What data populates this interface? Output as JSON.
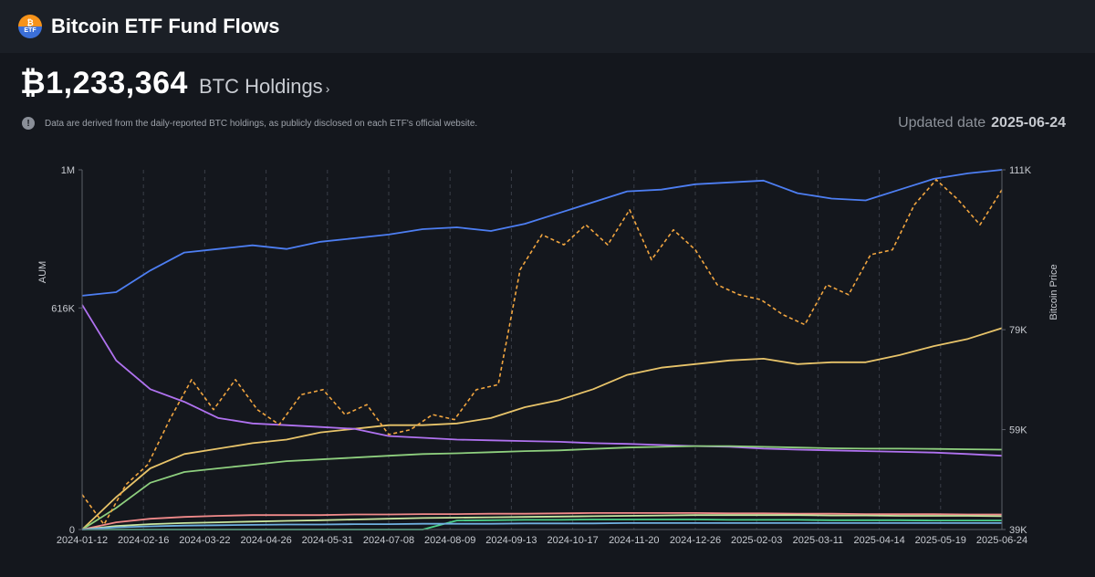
{
  "header": {
    "title": "Bitcoin ETF Fund Flows",
    "logo_top": "₿",
    "logo_bottom": "ETF"
  },
  "holdings": {
    "value": "₿1,233,364",
    "label": "BTC Holdings"
  },
  "note": "Data are derived from the daily-reported BTC holdings, as publicly disclosed on each ETF's official website.",
  "updated": {
    "label": "Updated date",
    "date": "2025-06-24"
  },
  "colors": {
    "background": "#14171d",
    "grid": "#3a3f48",
    "axis": "#5a5f68"
  },
  "chart_data": {
    "type": "line",
    "title": "",
    "ylabel": "AUM",
    "y2label": "Bitcoin Price",
    "ylim": [
      0,
      1000000
    ],
    "y2lim": [
      39000,
      111000
    ],
    "y_ticks": [
      "0",
      "616K",
      "1M"
    ],
    "y_tick_values": [
      0,
      616000,
      1000000
    ],
    "y2_ticks": [
      "39K",
      "59K",
      "79K",
      "111K"
    ],
    "y2_tick_values": [
      39000,
      59000,
      79000,
      111000
    ],
    "x_ticks": [
      "2024-01-12",
      "2024-02-16",
      "2024-03-22",
      "2024-04-26",
      "2024-05-31",
      "2024-07-08",
      "2024-08-09",
      "2024-09-13",
      "2024-10-17",
      "2024-11-20",
      "2024-12-26",
      "2025-02-03",
      "2025-03-11",
      "2025-04-14",
      "2025-05-19",
      "2025-06-24"
    ],
    "grid": true,
    "series": [
      {
        "color": "#4d7ef2",
        "axis": "y",
        "style": "solid",
        "values": [
          650000,
          660000,
          720000,
          770000,
          780000,
          790000,
          780000,
          800000,
          810000,
          820000,
          835000,
          840000,
          830000,
          850000,
          880000,
          910000,
          940000,
          945000,
          960000,
          965000,
          970000,
          935000,
          920000,
          915000,
          945000,
          975000,
          990000,
          1000000
        ]
      },
      {
        "color": "#e8c46a",
        "axis": "y",
        "style": "solid",
        "values": [
          0,
          90000,
          170000,
          210000,
          225000,
          240000,
          250000,
          270000,
          280000,
          290000,
          290000,
          295000,
          310000,
          340000,
          360000,
          390000,
          430000,
          450000,
          460000,
          470000,
          475000,
          460000,
          465000,
          465000,
          485000,
          510000,
          530000,
          560000
        ]
      },
      {
        "color": "#b072f0",
        "axis": "y",
        "style": "solid",
        "values": [
          625000,
          470000,
          390000,
          355000,
          310000,
          295000,
          290000,
          285000,
          280000,
          260000,
          255000,
          250000,
          248000,
          246000,
          244000,
          240000,
          238000,
          235000,
          232000,
          230000,
          225000,
          222000,
          220000,
          218000,
          216000,
          214000,
          210000,
          205000
        ]
      },
      {
        "color": "#8ecf7e",
        "axis": "y",
        "style": "solid",
        "values": [
          0,
          60000,
          130000,
          160000,
          170000,
          180000,
          190000,
          195000,
          200000,
          205000,
          210000,
          212000,
          215000,
          218000,
          220000,
          224000,
          228000,
          230000,
          232000,
          232000,
          230000,
          228000,
          226000,
          225000,
          225000,
          224000,
          223000,
          222000
        ]
      },
      {
        "color": "#f08a8a",
        "axis": "y",
        "style": "solid",
        "values": [
          0,
          20000,
          30000,
          35000,
          38000,
          40000,
          40000,
          40000,
          42000,
          42000,
          43000,
          43000,
          44000,
          44000,
          45000,
          46000,
          46000,
          46000,
          46000,
          45000,
          45000,
          44000,
          44000,
          43000,
          43000,
          43000,
          42000,
          42000
        ]
      },
      {
        "color": "#c8e6a0",
        "axis": "y",
        "style": "solid",
        "values": [
          0,
          10000,
          15000,
          18000,
          20000,
          22000,
          24000,
          26000,
          28000,
          30000,
          32000,
          33000,
          34000,
          35000,
          36000,
          37000,
          38000,
          39000,
          40000,
          40000,
          40000,
          40000,
          39000,
          39000,
          38000,
          38000,
          38000,
          37000
        ]
      },
      {
        "color": "#4bd08a",
        "axis": "y",
        "style": "solid",
        "values": [
          0,
          0,
          0,
          0,
          0,
          0,
          0,
          0,
          0,
          0,
          0,
          25000,
          26000,
          27000,
          27000,
          28000,
          28000,
          28000,
          28000,
          27000,
          27000,
          27000,
          26000,
          26000,
          26000,
          25000,
          25000,
          25000
        ]
      },
      {
        "color": "#6fb0e0",
        "axis": "y",
        "style": "solid",
        "values": [
          0,
          6000,
          9000,
          11000,
          12000,
          13000,
          14000,
          14000,
          15000,
          15000,
          16000,
          16000,
          16000,
          17000,
          17000,
          17000,
          18000,
          18000,
          18000,
          18000,
          18000,
          18000,
          18000,
          18000,
          18000,
          18000,
          18000,
          18000
        ]
      },
      {
        "color": "#f2a640",
        "axis": "y2",
        "style": "dashed",
        "values": [
          46000,
          40000,
          48000,
          52000,
          61000,
          69000,
          63000,
          69000,
          63000,
          60000,
          66000,
          67000,
          62000,
          64000,
          58000,
          59000,
          62000,
          61000,
          67000,
          68000,
          91000,
          98000,
          96000,
          100000,
          96000,
          103000,
          93000,
          99000,
          95000,
          88000,
          86000,
          85000,
          82000,
          80000,
          88000,
          86000,
          94000,
          95000,
          104000,
          109000,
          105000,
          100000,
          107000
        ]
      }
    ]
  }
}
